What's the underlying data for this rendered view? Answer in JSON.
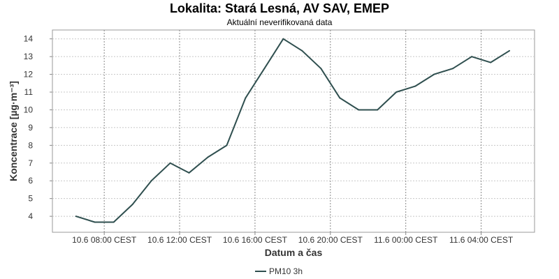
{
  "chart_data": {
    "type": "line",
    "title": "Lokalita: Stará Lesná, AV SAV, EMEP",
    "subtitle": "Aktuální neverifikovaná data",
    "xlabel": "Datum a čas",
    "ylabel": "Koncentrace [µg·m⁻³]",
    "ylim": [
      3.1,
      14.5
    ],
    "yticks": [
      4,
      5,
      6,
      7,
      8,
      9,
      10,
      11,
      12,
      13,
      14
    ],
    "xlim": [
      "2024-06-10 05:15",
      "2024-06-11 06:50"
    ],
    "xticks": [
      {
        "x": "2024-06-10 08:00",
        "label": "10.6 08:00 CEST"
      },
      {
        "x": "2024-06-10 12:00",
        "label": "10.6 12:00 CEST"
      },
      {
        "x": "2024-06-10 16:00",
        "label": "10.6 16:00 CEST"
      },
      {
        "x": "2024-06-10 20:00",
        "label": "10.6 20:00 CEST"
      },
      {
        "x": "2024-06-11 00:00",
        "label": "11.6 00:00 CEST"
      },
      {
        "x": "2024-06-11 04:00",
        "label": "11.6 04:00 CEST"
      }
    ],
    "grid": true,
    "legend_position": "bottom-center",
    "series": [
      {
        "name": "PM10 3h",
        "color": "#2f4f4f",
        "points": [
          {
            "x": "2024-06-10 06:30",
            "y": 4.0
          },
          {
            "x": "2024-06-10 07:30",
            "y": 3.67
          },
          {
            "x": "2024-06-10 08:30",
            "y": 3.67
          },
          {
            "x": "2024-06-10 09:30",
            "y": 4.67
          },
          {
            "x": "2024-06-10 10:30",
            "y": 6.0
          },
          {
            "x": "2024-06-10 11:30",
            "y": 7.0
          },
          {
            "x": "2024-06-10 12:30",
            "y": 6.45
          },
          {
            "x": "2024-06-10 13:30",
            "y": 7.33
          },
          {
            "x": "2024-06-10 14:30",
            "y": 8.0
          },
          {
            "x": "2024-06-10 15:30",
            "y": 10.67
          },
          {
            "x": "2024-06-10 16:30",
            "y": 12.33
          },
          {
            "x": "2024-06-10 17:30",
            "y": 14.0
          },
          {
            "x": "2024-06-10 18:30",
            "y": 13.33
          },
          {
            "x": "2024-06-10 19:30",
            "y": 12.33
          },
          {
            "x": "2024-06-10 20:30",
            "y": 10.67
          },
          {
            "x": "2024-06-10 21:30",
            "y": 10.0
          },
          {
            "x": "2024-06-10 22:30",
            "y": 10.0
          },
          {
            "x": "2024-06-10 23:30",
            "y": 11.0
          },
          {
            "x": "2024-06-11 00:30",
            "y": 11.33
          },
          {
            "x": "2024-06-11 01:30",
            "y": 12.0
          },
          {
            "x": "2024-06-11 02:30",
            "y": 12.33
          },
          {
            "x": "2024-06-11 03:30",
            "y": 13.0
          },
          {
            "x": "2024-06-11 04:30",
            "y": 12.67
          },
          {
            "x": "2024-06-11 05:30",
            "y": 13.33
          }
        ]
      }
    ]
  }
}
